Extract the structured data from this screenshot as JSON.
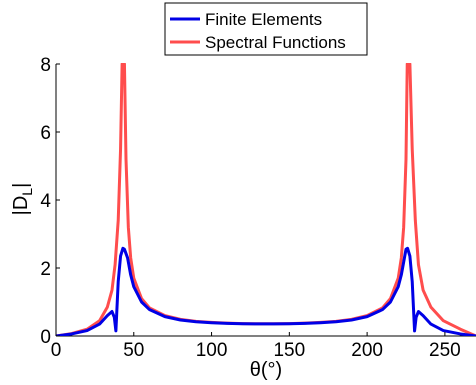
{
  "chart_data": {
    "type": "line",
    "xlabel": "θ(°)",
    "ylabel": "|D_L|",
    "ylabel_main": "|D",
    "ylabel_sub": "L",
    "ylabel_end": "|",
    "xlim": [
      0,
      270
    ],
    "ylim": [
      0,
      8
    ],
    "xticks": [
      0,
      50,
      100,
      150,
      200,
      250
    ],
    "yticks": [
      0,
      2,
      4,
      6,
      8
    ],
    "grid": false,
    "legend_position": "top-center",
    "series": [
      {
        "name": "Finite Elements",
        "color": "#0000e6",
        "x": [
          0,
          10,
          20,
          28,
          33,
          36,
          37.5,
          38.5,
          40,
          41.5,
          43,
          44,
          46,
          48,
          50,
          55,
          60,
          70,
          80,
          90,
          100,
          110,
          120,
          130,
          135,
          140,
          150,
          160,
          170,
          180,
          190,
          200,
          210,
          215,
          220,
          222,
          224,
          225,
          226,
          227.5,
          229,
          230.5,
          231.5,
          233,
          236,
          241,
          249,
          260,
          270
        ],
        "y": [
          0,
          0.06,
          0.16,
          0.35,
          0.6,
          0.72,
          0.55,
          0.15,
          1.6,
          2.35,
          2.58,
          2.55,
          2.3,
          1.8,
          1.45,
          1.0,
          0.78,
          0.57,
          0.47,
          0.42,
          0.39,
          0.37,
          0.36,
          0.355,
          0.355,
          0.355,
          0.36,
          0.37,
          0.39,
          0.42,
          0.47,
          0.57,
          0.78,
          1.0,
          1.45,
          1.8,
          2.3,
          2.55,
          2.58,
          2.35,
          1.6,
          0.15,
          0.55,
          0.72,
          0.6,
          0.35,
          0.16,
          0.06,
          0
        ]
      },
      {
        "name": "Spectral Functions",
        "color": "#ff4d4d",
        "x": [
          0,
          10,
          20,
          28,
          33,
          36,
          38,
          40,
          41.5,
          42.5,
          43.2,
          44,
          45,
          46.5,
          48,
          50,
          55,
          60,
          70,
          80,
          90,
          100,
          110,
          120,
          130,
          135,
          140,
          150,
          160,
          170,
          180,
          190,
          200,
          210,
          215,
          220,
          222,
          223.5,
          225,
          225.8,
          226.5,
          227.5,
          229,
          231,
          233,
          236,
          241,
          249,
          260,
          270
        ],
        "y": [
          0,
          0.07,
          0.2,
          0.45,
          0.85,
          1.35,
          2.1,
          3.4,
          5.5,
          8.0,
          8.0,
          8.0,
          5.2,
          3.2,
          2.3,
          1.7,
          1.1,
          0.83,
          0.6,
          0.49,
          0.43,
          0.4,
          0.38,
          0.365,
          0.36,
          0.36,
          0.36,
          0.365,
          0.38,
          0.4,
          0.43,
          0.49,
          0.6,
          0.83,
          1.1,
          1.7,
          2.3,
          3.2,
          5.2,
          8.0,
          8.0,
          8.0,
          5.5,
          3.4,
          2.1,
          1.35,
          0.85,
          0.45,
          0.2,
          0
        ]
      }
    ]
  }
}
